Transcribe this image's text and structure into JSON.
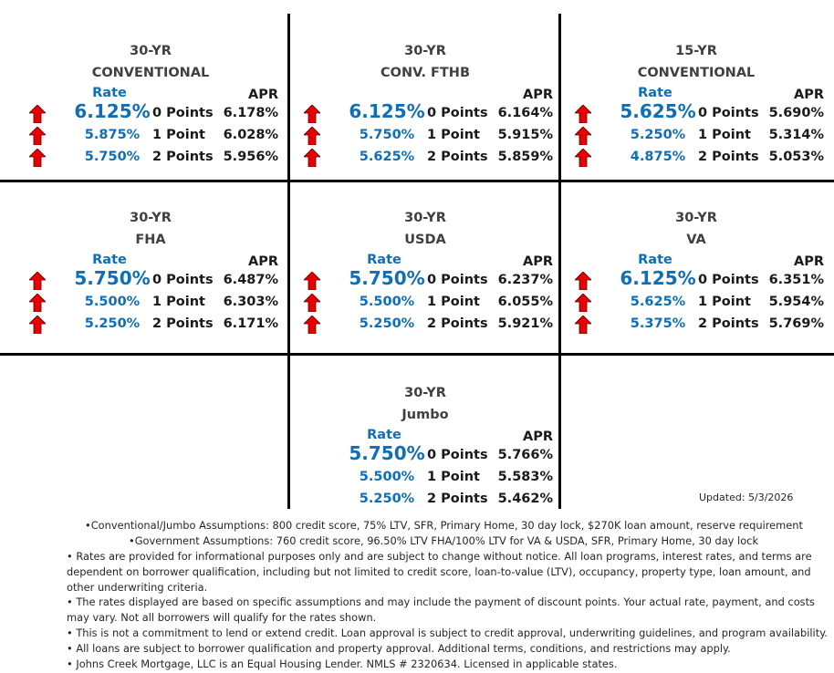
{
  "cells": [
    {
      "title1": "30-YR",
      "title2": "CONVENTIONAL",
      "rate_label": "Rate",
      "apr_label": "APR",
      "rows": [
        {
          "rate": "6.125%",
          "points": "0 Points",
          "apr": "6.178%"
        },
        {
          "rate": "5.875%",
          "points": "1 Point",
          "apr": "6.028%"
        },
        {
          "rate": "5.750%",
          "points": "2 Points",
          "apr": "5.956%"
        }
      ]
    },
    {
      "title1": "30-YR",
      "title2": "CONV. FTHB",
      "rate_label": "",
      "apr_label": "APR",
      "rows": [
        {
          "rate": "6.125%",
          "points": "0 Points",
          "apr": "6.164%"
        },
        {
          "rate": "5.750%",
          "points": "1 Point",
          "apr": "5.915%"
        },
        {
          "rate": "5.625%",
          "points": "2 Points",
          "apr": "5.859%"
        }
      ]
    },
    {
      "title1": "15-YR",
      "title2": "CONVENTIONAL",
      "rate_label": "Rate",
      "apr_label": "APR",
      "rows": [
        {
          "rate": "5.625%",
          "points": "0 Points",
          "apr": "5.690%"
        },
        {
          "rate": "5.250%",
          "points": "1 Point",
          "apr": "5.314%"
        },
        {
          "rate": "4.875%",
          "points": "2 Points",
          "apr": "5.053%"
        }
      ]
    },
    {
      "title1": "30-YR",
      "title2": "FHA",
      "rate_label": "Rate",
      "apr_label": "APR",
      "rows": [
        {
          "rate": "5.750%",
          "points": "0 Points",
          "apr": "6.487%"
        },
        {
          "rate": "5.500%",
          "points": "1 Point",
          "apr": "6.303%"
        },
        {
          "rate": "5.250%",
          "points": "2 Points",
          "apr": "6.171%"
        }
      ]
    },
    {
      "title1": "30-YR",
      "title2": "USDA",
      "rate_label": "Rate",
      "apr_label": "APR",
      "rows": [
        {
          "rate": "5.750%",
          "points": "0 Points",
          "apr": "6.237%"
        },
        {
          "rate": "5.500%",
          "points": "1 Point",
          "apr": "6.055%"
        },
        {
          "rate": "5.250%",
          "points": "2 Points",
          "apr": "5.921%"
        }
      ]
    },
    {
      "title1": "30-YR",
      "title2": "VA",
      "rate_label": "Rate",
      "apr_label": "APR",
      "rows": [
        {
          "rate": "6.125%",
          "points": "0 Points",
          "apr": "6.351%"
        },
        {
          "rate": "5.625%",
          "points": "1 Point",
          "apr": "5.954%"
        },
        {
          "rate": "5.375%",
          "points": "2 Points",
          "apr": "5.769%"
        }
      ]
    },
    {
      "title1": "30-YR",
      "title2": "Jumbo",
      "rate_label": "Rate",
      "apr_label": "APR",
      "rows": [
        {
          "rate": "5.750%",
          "points": "0 Points",
          "apr": "5.766%"
        },
        {
          "rate": "5.500%",
          "points": "1 Point",
          "apr": "5.583%"
        },
        {
          "rate": "5.250%",
          "points": "2 Points",
          "apr": "5.462%"
        }
      ]
    }
  ],
  "trend_icon": "red-up-arrow-icon",
  "colors": {
    "rate": "#0e6eb8",
    "arrow": "#e60000",
    "grid": "#000000"
  },
  "updated": "Updated: 5/3/2026",
  "notes": [
    "•Conventional/Jumbo Assumptions: 800 credit score, 75% LTV, SFR, Primary Home, 30 day lock, $270K loan amount, reserve requirement",
    "•Government Assumptions: 760 credit score, 96.50% LTV FHA/100% LTV for VA & USDA, SFR, Primary Home, 30 day lock",
    "• Rates are provided for informational purposes only and are subject to change without notice. All loan programs, interest rates, and terms are dependent on borrower qualification, including but not limited to credit score, loan-to-value (LTV), occupancy, property type, loan amount, and other underwriting criteria.",
    "• The rates displayed are based on specific assumptions and may include the payment of discount points. Your actual rate, payment, and costs may vary. Not all borrowers will qualify for the rates shown.",
    "• This is not a commitment to lend or extend credit. Loan approval is subject to credit approval, underwriting guidelines, and program availability.",
    "• All loans are subject to borrower qualification and property approval. Additional terms, conditions, and restrictions may apply.",
    "• Johns Creek Mortgage, LLC is an Equal Housing Lender. NMLS # 2320634. Licensed in applicable states."
  ]
}
